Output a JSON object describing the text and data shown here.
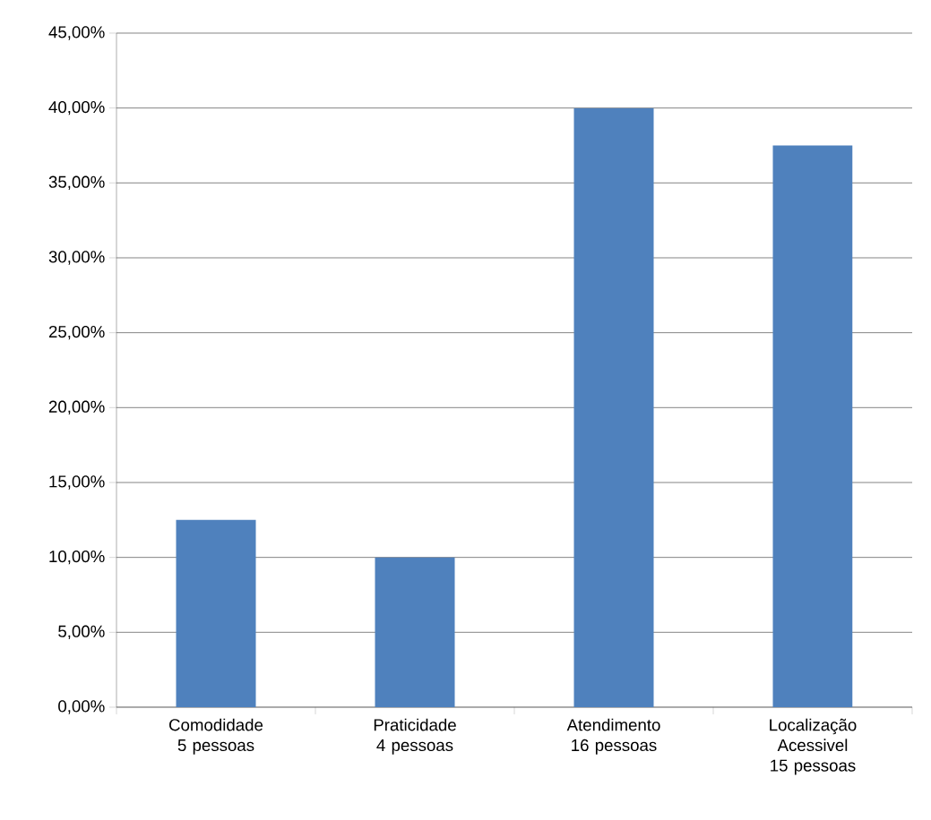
{
  "chart_data": {
    "type": "bar",
    "categories": [
      "Comodidade 5 pessoas",
      "Praticidade 4 pessoas",
      "Atendimento 16 pessoas",
      "Localização Acessivel 15 pessoas"
    ],
    "values": [
      12.5,
      10,
      40,
      37.5
    ],
    "color": "#4f81bd",
    "ylim": [
      0,
      45
    ],
    "yticks": [
      {
        "value": 0,
        "label": "0,00%"
      },
      {
        "value": 5,
        "label": "5,00%"
      },
      {
        "value": 10,
        "label": "10,00%"
      },
      {
        "value": 15,
        "label": "15,00%"
      },
      {
        "value": 20,
        "label": "20,00%"
      },
      {
        "value": 25,
        "label": "25,00%"
      },
      {
        "value": 30,
        "label": "30,00%"
      },
      {
        "value": 35,
        "label": "35,00%"
      },
      {
        "value": 40,
        "label": "40,00%"
      },
      {
        "value": 45,
        "label": "45,00%"
      }
    ],
    "grid": "y"
  }
}
